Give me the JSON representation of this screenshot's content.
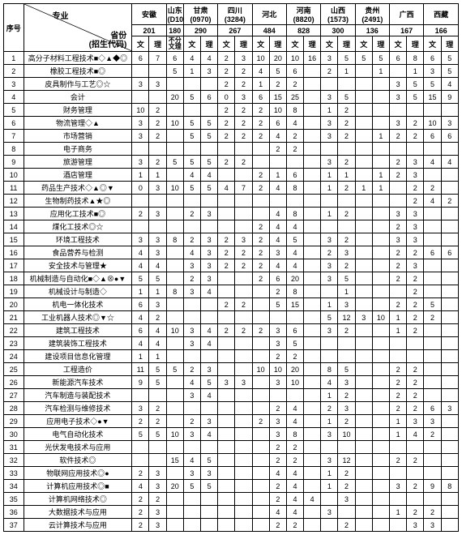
{
  "header": {
    "serial_label": "序号",
    "diag_major": "专业",
    "diag_province": "省份\n(招生代码)",
    "sub_wen": "文",
    "sub_li": "理",
    "sub_nosplit": "不分\n文理"
  },
  "provinces": [
    {
      "name": "安徽",
      "code": "201",
      "split": true
    },
    {
      "name": "山东\n(D107)",
      "code": "180",
      "split": false
    },
    {
      "name": "甘肃\n(0970)",
      "code": "290",
      "split": true
    },
    {
      "name": "四川\n(3284)",
      "code": "267",
      "split": true
    },
    {
      "name": "河北",
      "code": "484",
      "split": true
    },
    {
      "name": "河南\n(8820)",
      "code": "828",
      "split": true
    },
    {
      "name": "山西\n(1573)",
      "code": "300",
      "split": true
    },
    {
      "name": "贵州\n(2491)",
      "code": "136",
      "split": true
    },
    {
      "name": "广西",
      "code": "167",
      "split": true
    },
    {
      "name": "西藏",
      "code": "166",
      "split": true
    }
  ],
  "majors": [
    "高分子材料工程技术■◇▲◆◎",
    "橡胶工程技术■◎",
    "皮具制作与工艺◎☆",
    "会计",
    "财务管理",
    "物流管理◇▲",
    "市场营销",
    "电子商务",
    "旅游管理",
    "酒店管理",
    "药品生产技术◇▲◎▼",
    "生物制药技术▲★◎",
    "应用化工技术■◎",
    "煤化工技术◎☆",
    "环境工程技术",
    "食品营养与检测",
    "安全技术与管理★",
    "机械制造与自动化■◇▲⊗●▼",
    "机械设计与制造◇",
    "机电一体化技术",
    "工业机器人技术◎▼☆",
    "建筑工程技术",
    "建筑装饰工程技术",
    "建设项目信息化管理",
    "工程造价",
    "新能源汽车技术",
    "汽车制造与装配技术",
    "汽车检测与维修技术",
    "应用电子技术◇●▼",
    "电气自动化技术",
    "光伏发电技术与应用",
    "软件技术◎",
    "物联网应用技术◎●",
    "计算机应用技术◎■",
    "计算机网络技术◎",
    "大数据技术与应用",
    "云计算技术与应用"
  ],
  "rows": [
    [
      "6",
      "7",
      "6",
      "4",
      "4",
      "2",
      "3",
      "10",
      "20",
      "10",
      "16",
      "3",
      "5",
      "5",
      "5",
      "6",
      "8",
      "6",
      "5"
    ],
    [
      "",
      "",
      "5",
      "1",
      "3",
      "2",
      "2",
      "4",
      "5",
      "6",
      "",
      "2",
      "1",
      "",
      "1",
      "",
      "1",
      "3",
      "5"
    ],
    [
      "3",
      "3",
      "",
      "",
      "",
      "2",
      "2",
      "1",
      "2",
      "2",
      "",
      "",
      "",
      "",
      "",
      "3",
      "5",
      "5",
      "4"
    ],
    [
      "",
      "",
      "20",
      "5",
      "6",
      "0",
      "3",
      "6",
      "15",
      "25",
      "",
      "3",
      "5",
      "",
      "",
      "3",
      "5",
      "15",
      "9"
    ],
    [
      "10",
      "2",
      "",
      "",
      "",
      "2",
      "2",
      "2",
      "10",
      "8",
      "",
      "1",
      "2",
      "",
      "",
      "",
      "",
      "",
      ""
    ],
    [
      "3",
      "2",
      "10",
      "5",
      "5",
      "2",
      "2",
      "2",
      "6",
      "4",
      "",
      "3",
      "2",
      "",
      "",
      "3",
      "2",
      "10",
      "3"
    ],
    [
      "3",
      "2",
      "",
      "5",
      "5",
      "2",
      "2",
      "2",
      "4",
      "2",
      "",
      "3",
      "2",
      "",
      "1",
      "2",
      "2",
      "6",
      "6"
    ],
    [
      "",
      "",
      "",
      "",
      "",
      "",
      "",
      "",
      "2",
      "2",
      "",
      "",
      "",
      "",
      "",
      "",
      "",
      "",
      ""
    ],
    [
      "3",
      "2",
      "5",
      "5",
      "5",
      "2",
      "2",
      "",
      "",
      "",
      "",
      "3",
      "2",
      "",
      "",
      "2",
      "3",
      "4",
      "4"
    ],
    [
      "1",
      "1",
      "",
      "4",
      "4",
      "",
      "",
      "2",
      "1",
      "6",
      "",
      "1",
      "1",
      "",
      "1",
      "2",
      "3",
      "",
      ""
    ],
    [
      "0",
      "3",
      "10",
      "5",
      "5",
      "4",
      "7",
      "2",
      "4",
      "8",
      "",
      "1",
      "2",
      "1",
      "1",
      "",
      "2",
      "2",
      ""
    ],
    [
      "",
      "",
      "",
      "",
      "",
      "",
      "",
      "",
      "",
      "",
      "",
      "",
      "",
      "",
      "",
      "",
      "2",
      "4",
      "2"
    ],
    [
      "2",
      "3",
      "",
      "2",
      "3",
      "",
      "",
      "",
      "4",
      "8",
      "",
      "1",
      "2",
      "",
      "",
      "3",
      "3",
      "",
      ""
    ],
    [
      "",
      "",
      "",
      "",
      "",
      "",
      "",
      "2",
      "4",
      "4",
      "",
      "",
      "",
      "",
      "",
      "2",
      "3",
      "",
      ""
    ],
    [
      "3",
      "3",
      "8",
      "2",
      "3",
      "2",
      "3",
      "2",
      "4",
      "5",
      "",
      "3",
      "2",
      "",
      "",
      "3",
      "3",
      "",
      ""
    ],
    [
      "4",
      "3",
      "",
      "4",
      "3",
      "2",
      "2",
      "2",
      "3",
      "4",
      "",
      "2",
      "3",
      "",
      "",
      "2",
      "2",
      "6",
      "6"
    ],
    [
      "4",
      "4",
      "",
      "3",
      "3",
      "2",
      "2",
      "2",
      "4",
      "4",
      "",
      "3",
      "2",
      "",
      "",
      "2",
      "3",
      "",
      ""
    ],
    [
      "5",
      "5",
      "",
      "2",
      "3",
      "",
      "",
      "2",
      "6",
      "20",
      "",
      "3",
      "5",
      "",
      "",
      "2",
      "2",
      "",
      ""
    ],
    [
      "1",
      "1",
      "8",
      "3",
      "4",
      "",
      "",
      "",
      "2",
      "8",
      "",
      "",
      "1",
      "",
      "",
      "",
      "2",
      "",
      ""
    ],
    [
      "6",
      "3",
      "",
      "",
      "",
      "2",
      "2",
      "",
      "5",
      "15",
      "",
      "1",
      "3",
      "",
      "",
      "2",
      "2",
      "5",
      ""
    ],
    [
      "4",
      "2",
      "",
      "",
      "",
      "",
      "",
      "",
      "",
      "",
      "",
      "5",
      "12",
      "3",
      "10",
      "1",
      "2",
      "2",
      ""
    ],
    [
      "6",
      "4",
      "10",
      "3",
      "4",
      "2",
      "2",
      "2",
      "3",
      "6",
      "",
      "3",
      "2",
      "",
      "",
      "1",
      "2",
      "",
      ""
    ],
    [
      "4",
      "4",
      "",
      "3",
      "4",
      "",
      "",
      "",
      "3",
      "5",
      "",
      "",
      "",
      "",
      "",
      "",
      "",
      "",
      ""
    ],
    [
      "1",
      "1",
      "",
      "",
      "",
      "",
      "",
      "",
      "2",
      "2",
      "",
      "",
      "",
      "",
      "",
      "",
      "",
      "",
      ""
    ],
    [
      "11",
      "5",
      "5",
      "2",
      "3",
      "",
      "",
      "10",
      "10",
      "20",
      "",
      "8",
      "5",
      "",
      "",
      "2",
      "2",
      "",
      ""
    ],
    [
      "9",
      "5",
      "",
      "4",
      "5",
      "3",
      "3",
      "",
      "3",
      "10",
      "",
      "4",
      "3",
      "",
      "",
      "2",
      "2",
      "",
      ""
    ],
    [
      "",
      "",
      "",
      "3",
      "4",
      "",
      "",
      "",
      "",
      "",
      "",
      "1",
      "2",
      "",
      "",
      "2",
      "2",
      "",
      ""
    ],
    [
      "3",
      "2",
      "",
      "",
      "",
      "",
      "",
      "",
      "2",
      "4",
      "",
      "2",
      "3",
      "",
      "",
      "2",
      "2",
      "6",
      "3"
    ],
    [
      "2",
      "2",
      "",
      "2",
      "3",
      "",
      "",
      "2",
      "3",
      "4",
      "",
      "1",
      "2",
      "",
      "",
      "1",
      "3",
      "3",
      ""
    ],
    [
      "5",
      "5",
      "10",
      "3",
      "4",
      "",
      "",
      "",
      "3",
      "8",
      "",
      "3",
      "10",
      "",
      "",
      "1",
      "4",
      "2",
      ""
    ],
    [
      "",
      "",
      "",
      "",
      "",
      "",
      "",
      "",
      "2",
      "2",
      "",
      "",
      "",
      "",
      "",
      "",
      "",
      "",
      ""
    ],
    [
      "",
      "",
      "15",
      "4",
      "5",
      "",
      "",
      "",
      "2",
      "2",
      "",
      "3",
      "12",
      "",
      "",
      "2",
      "2",
      "",
      ""
    ],
    [
      "2",
      "3",
      "",
      "3",
      "3",
      "",
      "",
      "",
      "4",
      "4",
      "",
      "1",
      "2",
      "",
      "",
      "",
      "",
      "",
      ""
    ],
    [
      "4",
      "3",
      "20",
      "5",
      "5",
      "",
      "",
      "",
      "2",
      "4",
      "",
      "1",
      "2",
      "",
      "",
      "3",
      "2",
      "9",
      "8"
    ],
    [
      "2",
      "2",
      "",
      "",
      "",
      "",
      "",
      "",
      "2",
      "4",
      "4",
      "",
      "3",
      "",
      "",
      "",
      "",
      "",
      ""
    ],
    [
      "2",
      "3",
      "",
      "",
      "",
      "",
      "",
      "",
      "4",
      "4",
      "",
      "3",
      "",
      "",
      "",
      "1",
      "2",
      "2",
      ""
    ],
    [
      "2",
      "3",
      "",
      "",
      "",
      "",
      "",
      "",
      "2",
      "2",
      "",
      "",
      "2",
      "",
      "",
      "",
      "3",
      "3",
      ""
    ]
  ]
}
